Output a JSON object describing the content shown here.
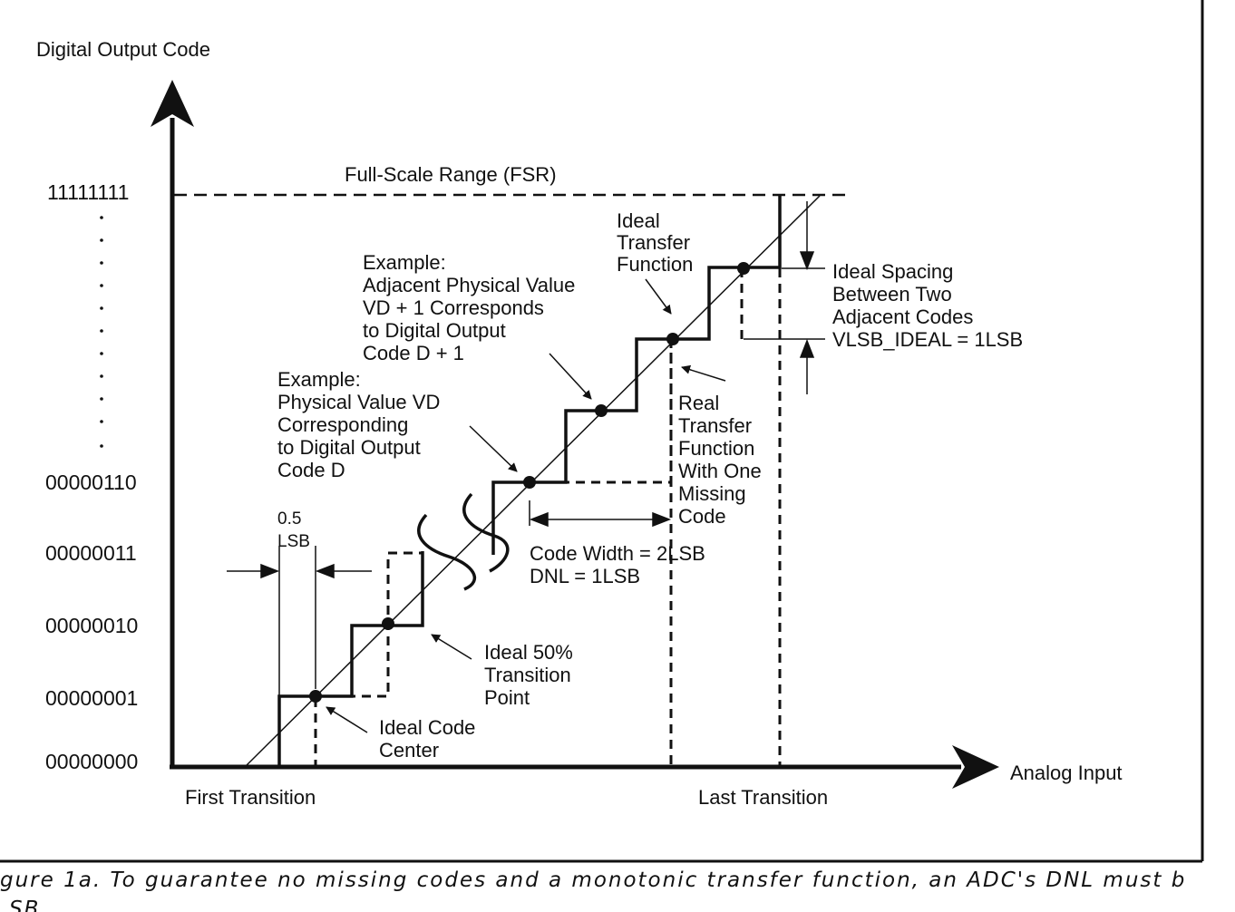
{
  "axes": {
    "y_label": "Digital Output Code",
    "x_label": "Analog Input"
  },
  "y_codes": [
    "11111111",
    "00000110",
    "00000011",
    "00000010",
    "00000001",
    "00000000"
  ],
  "x_labels": {
    "first": "First Transition",
    "last": "Last Transition"
  },
  "annotations": {
    "fsr": "Full-Scale Range (FSR)",
    "ideal_transfer": [
      "Ideal",
      "Transfer",
      "Function"
    ],
    "ideal_spacing": [
      "Ideal Spacing",
      "Between Two",
      "Adjacent Codes",
      "VLSB_IDEAL = 1LSB"
    ],
    "example_adjacent": [
      "Example:",
      "Adjacent Physical Value",
      "VD + 1 Corresponds",
      "to Digital Output",
      "Code D + 1"
    ],
    "example_vd": [
      "Example:",
      "Physical Value VD",
      "Corresponding",
      "to Digital Output",
      "Code D"
    ],
    "real_transfer": [
      "Real",
      "Transfer",
      "Function",
      "With One",
      "Missing",
      "Code"
    ],
    "code_width": [
      "Code Width = 2LSB",
      "DNL = 1LSB"
    ],
    "half_lsb": [
      "0.5",
      "LSB"
    ],
    "ideal_50": [
      "Ideal 50%",
      "Transition",
      "Point"
    ],
    "ideal_center": [
      "Ideal Code",
      "Center"
    ]
  },
  "caption": {
    "line1": "gure 1a. To guarantee no missing codes and a monotonic transfer function, an ADC's DNL must b",
    "line2": "SB"
  },
  "colors": {
    "ink": "#111111",
    "background": "#ffffff"
  }
}
